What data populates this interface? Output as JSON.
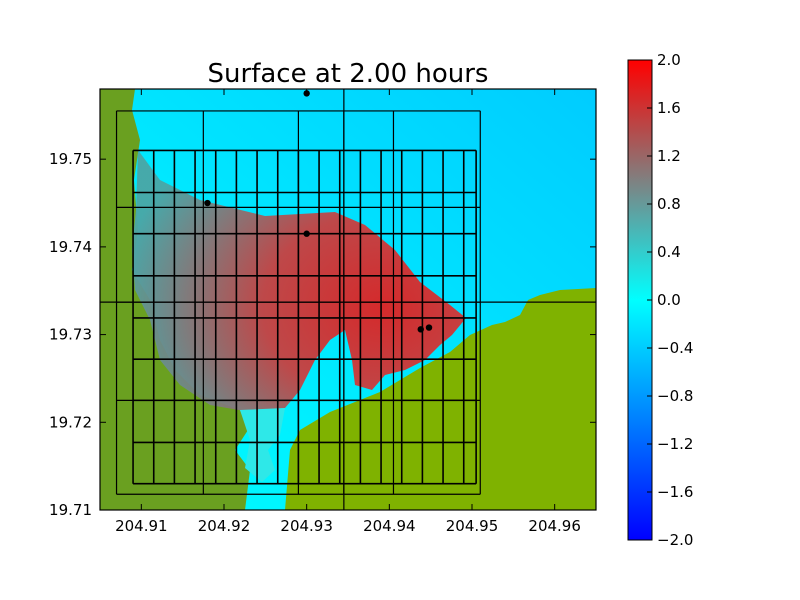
{
  "chart_data": {
    "type": "heatmap",
    "title": "Surface at 2.00 hours",
    "xlabel": "",
    "ylabel": "",
    "xlim": [
      204.905,
      204.965
    ],
    "ylim": [
      19.71,
      19.758
    ],
    "x_ticks": [
      204.91,
      204.92,
      204.93,
      204.94,
      204.95,
      204.96
    ],
    "x_tick_labels": [
      "204.91",
      "204.92",
      "204.93",
      "204.94",
      "204.95",
      "204.96"
    ],
    "y_ticks": [
      19.71,
      19.72,
      19.73,
      19.74,
      19.75
    ],
    "y_tick_labels": [
      "19.71",
      "19.72",
      "19.73",
      "19.74",
      "19.75"
    ],
    "colorbar": {
      "range": [
        -2.0,
        2.0
      ],
      "ticks": [
        2.0,
        1.6,
        1.2,
        0.8,
        0.4,
        0.0,
        -0.4,
        -0.8,
        -1.2,
        -1.6,
        -2.0
      ],
      "tick_labels": [
        "2.0",
        "1.6",
        "1.2",
        "0.8",
        "0.4",
        "0.0",
        "−0.4",
        "−0.8",
        "−1.2",
        "−1.6",
        "−2.0"
      ],
      "colors": [
        "#0000ff",
        "#00ffff",
        "#ff0000"
      ]
    },
    "land_color": "#7fb200",
    "gauges": [
      {
        "x": 204.93,
        "y": 19.7575
      },
      {
        "x": 204.918,
        "y": 19.745
      },
      {
        "x": 204.93,
        "y": 19.7415
      },
      {
        "x": 204.9438,
        "y": 19.7306
      },
      {
        "x": 204.9448,
        "y": 19.7308
      }
    ],
    "grid_outer": {
      "x": [
        204.907,
        204.9175,
        204.929,
        204.9345,
        204.9405,
        204.951
      ],
      "y": [
        19.7118,
        19.7225,
        19.7337,
        19.7445,
        19.7555
      ]
    },
    "grid_inner": {
      "x": [
        204.909,
        204.9115,
        204.914,
        204.9165,
        204.919,
        204.9215,
        204.924,
        204.9265,
        204.929,
        204.9315,
        204.934,
        204.9365,
        204.939,
        204.9415,
        204.944,
        204.9465,
        204.949,
        204.9505
      ],
      "y": [
        19.713,
        19.7177,
        19.7225,
        19.7272,
        19.7319,
        19.7367,
        19.7415,
        19.7462,
        19.751
      ]
    }
  }
}
